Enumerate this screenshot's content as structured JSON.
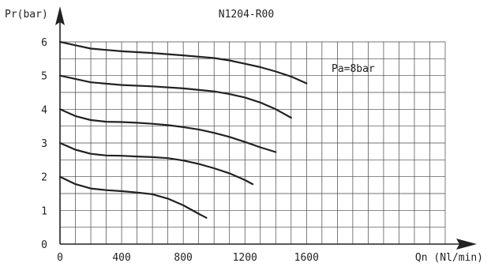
{
  "chart_data": {
    "type": "line",
    "title": "N1204-R00",
    "xlabel": "Qn (Nl/min)",
    "ylabel": "Pr(bar)",
    "xlim": [
      0,
      2500
    ],
    "ylim": [
      0,
      6
    ],
    "x_ticks": [
      0,
      400,
      800,
      1200,
      1600
    ],
    "y_ticks": [
      0,
      1,
      2,
      3,
      4,
      5,
      6
    ],
    "grid": true,
    "annotation": "Pa=8bar",
    "series": [
      {
        "x": [
          0,
          100,
          200,
          300,
          400,
          500,
          600,
          700,
          800,
          900,
          950
        ],
        "y": [
          2.0,
          1.78,
          1.65,
          1.6,
          1.57,
          1.53,
          1.48,
          1.35,
          1.15,
          0.9,
          0.78
        ]
      },
      {
        "x": [
          0,
          100,
          200,
          300,
          400,
          500,
          600,
          700,
          800,
          900,
          1000,
          1100,
          1200,
          1250
        ],
        "y": [
          3.0,
          2.8,
          2.68,
          2.63,
          2.62,
          2.6,
          2.58,
          2.55,
          2.48,
          2.38,
          2.25,
          2.1,
          1.9,
          1.78
        ]
      },
      {
        "x": [
          0,
          100,
          200,
          300,
          400,
          500,
          600,
          700,
          800,
          900,
          1000,
          1100,
          1200,
          1300,
          1400
        ],
        "y": [
          4.0,
          3.8,
          3.68,
          3.63,
          3.62,
          3.6,
          3.57,
          3.53,
          3.47,
          3.4,
          3.3,
          3.18,
          3.03,
          2.87,
          2.73
        ]
      },
      {
        "x": [
          0,
          200,
          400,
          600,
          800,
          1000,
          1100,
          1200,
          1300,
          1400,
          1500
        ],
        "y": [
          5.0,
          4.8,
          4.72,
          4.68,
          4.62,
          4.53,
          4.45,
          4.35,
          4.2,
          4.0,
          3.75
        ]
      },
      {
        "x": [
          0,
          100,
          200,
          400,
          600,
          800,
          1000,
          1100,
          1200,
          1300,
          1400,
          1500,
          1600
        ],
        "y": [
          6.0,
          5.9,
          5.8,
          5.72,
          5.67,
          5.6,
          5.52,
          5.45,
          5.35,
          5.25,
          5.12,
          4.97,
          4.77
        ]
      }
    ]
  }
}
